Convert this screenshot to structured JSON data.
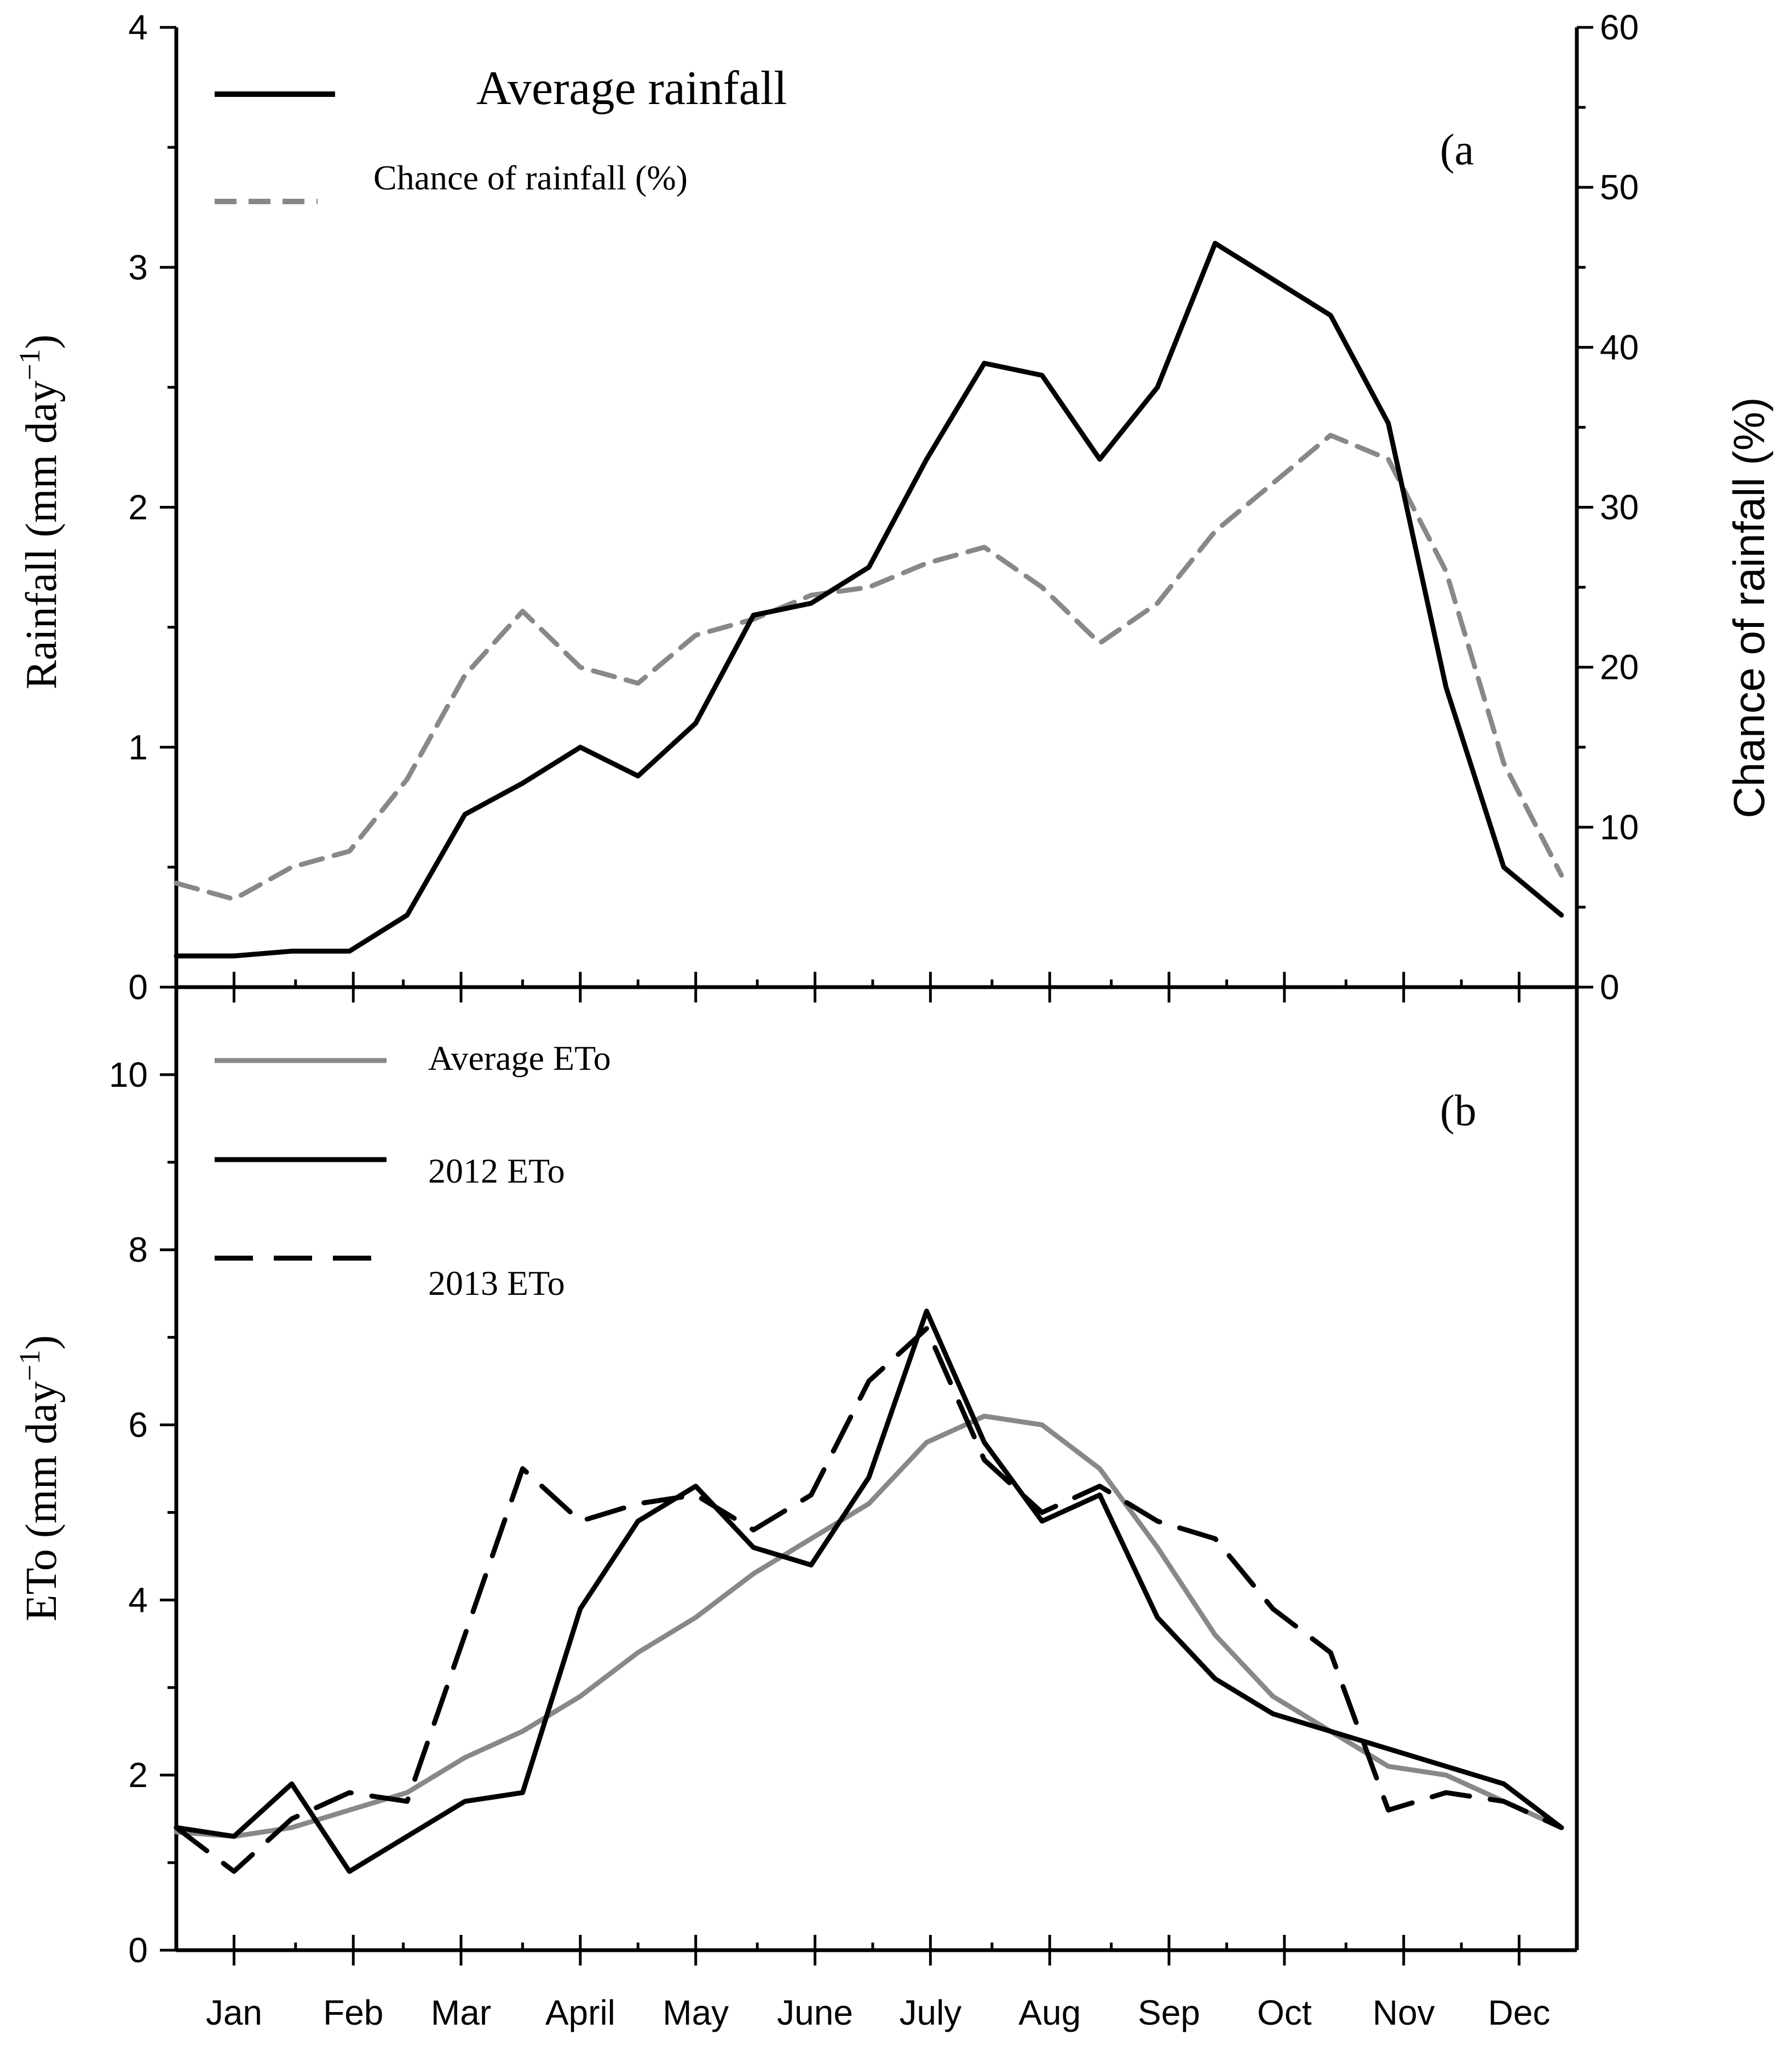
{
  "chart_data": [
    {
      "panel": "(a",
      "type": "line",
      "months": [
        "Jan",
        "Feb",
        "Mar",
        "April",
        "May",
        "June",
        "July",
        "Aug",
        "Sep",
        "Oct",
        "Nov",
        "Dec"
      ],
      "x": [
        1,
        16,
        31,
        46,
        61,
        76,
        91,
        106,
        121,
        136,
        151,
        166,
        181,
        196,
        211,
        226,
        241,
        256,
        271,
        286,
        301,
        316,
        331,
        346,
        361
      ],
      "ylabel": "Rainfall (mm day",
      "ylabel_sup": "−1",
      "ylabel_close": ")",
      "y2label": "Chance of rainfall (%)",
      "ylim": [
        0,
        4
      ],
      "y2lim": [
        0,
        60
      ],
      "yticks": [
        "0",
        "1",
        "2",
        "3",
        "4"
      ],
      "y2ticks": [
        "0",
        "10",
        "20",
        "30",
        "40",
        "50",
        "60"
      ],
      "series": [
        {
          "name": "Average rainfall",
          "axis": "left",
          "color": "#000000",
          "style": "solid",
          "values": [
            0.13,
            0.13,
            0.15,
            0.15,
            0.3,
            0.72,
            0.85,
            1.0,
            0.88,
            1.1,
            1.55,
            1.6,
            1.75,
            2.2,
            2.6,
            2.55,
            2.2,
            2.5,
            3.1,
            2.95,
            2.8,
            2.35,
            1.25,
            0.5,
            0.3
          ]
        },
        {
          "name": "Chance of rainfall (%)",
          "axis": "right",
          "color": "#888888",
          "style": "dashed",
          "values": [
            6.5,
            5.5,
            7.5,
            8.5,
            13,
            19.5,
            23.5,
            20,
            19,
            22,
            23,
            24.5,
            25,
            26.5,
            27.5,
            25,
            21.5,
            24,
            28.5,
            31.5,
            34.5,
            33,
            26,
            14,
            7
          ]
        }
      ]
    },
    {
      "panel": "(b",
      "type": "line",
      "months": [
        "Jan",
        "Feb",
        "Mar",
        "April",
        "May",
        "June",
        "July",
        "Aug",
        "Sep",
        "Oct",
        "Nov",
        "Dec"
      ],
      "x": [
        1,
        16,
        31,
        46,
        61,
        76,
        91,
        106,
        121,
        136,
        151,
        166,
        181,
        196,
        211,
        226,
        241,
        256,
        271,
        286,
        301,
        316,
        331,
        346,
        361
      ],
      "ylabel": "ETo (mm day",
      "ylabel_sup": "−1",
      "ylabel_close": ")",
      "ylim": [
        0,
        11
      ],
      "yticks": [
        "0",
        "2",
        "4",
        "6",
        "8",
        "10"
      ],
      "series": [
        {
          "name": "Average ETo",
          "color": "#888888",
          "style": "solid",
          "values": [
            1.35,
            1.3,
            1.4,
            1.6,
            1.8,
            2.2,
            2.5,
            2.9,
            3.4,
            3.8,
            4.3,
            4.7,
            5.1,
            5.8,
            6.1,
            6.0,
            5.5,
            4.6,
            3.6,
            2.9,
            2.5,
            2.1,
            2.0,
            1.7,
            1.4
          ]
        },
        {
          "name": "2012 ETo",
          "color": "#000000",
          "style": "solid",
          "values": [
            1.4,
            1.3,
            1.9,
            0.9,
            1.3,
            1.7,
            1.8,
            3.9,
            4.9,
            5.3,
            4.6,
            4.4,
            5.4,
            7.3,
            5.8,
            4.9,
            5.2,
            3.8,
            3.1,
            2.7,
            2.5,
            2.3,
            2.1,
            1.9,
            1.4
          ]
        },
        {
          "name": "2013 ETo",
          "color": "#000000",
          "style": "dashed",
          "values": [
            1.4,
            0.9,
            1.5,
            1.8,
            1.7,
            3.6,
            5.5,
            4.9,
            5.1,
            5.2,
            4.8,
            5.2,
            6.5,
            7.1,
            5.6,
            5.0,
            5.3,
            4.9,
            4.7,
            3.9,
            3.4,
            1.6,
            1.8,
            1.7,
            1.4
          ]
        }
      ]
    }
  ]
}
